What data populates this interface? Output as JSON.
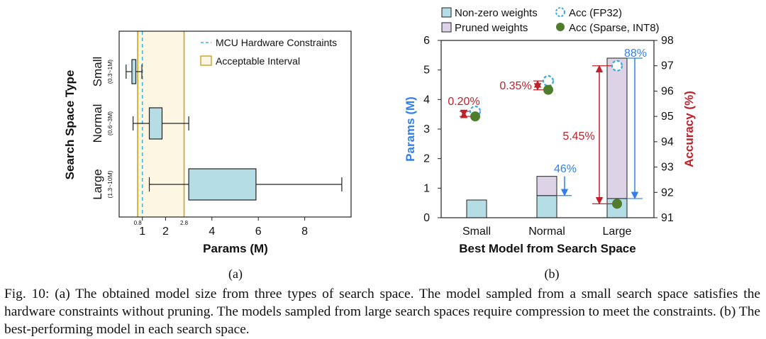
{
  "chart_data": [
    {
      "type": "boxplot",
      "orientation": "horizontal",
      "panel_label": "(a)",
      "xlabel": "Params (M)",
      "ylabel": "Search Space Type",
      "xlim": [
        0,
        10
      ],
      "xticks": [
        1,
        2,
        4,
        6,
        8
      ],
      "xticks_small": [
        0.8,
        2.8
      ],
      "categories": [
        {
          "name": "Small",
          "range": "(0.3~1M)",
          "whisker_low": 0.3,
          "q1": 0.55,
          "q3": 0.72,
          "whisker_high": 0.98
        },
        {
          "name": "Normal",
          "range": "(0.6~3M)",
          "whisker_low": 0.6,
          "q1": 1.3,
          "q3": 1.85,
          "whisker_high": 3.0
        },
        {
          "name": "Large",
          "range": "(1.3~10M)",
          "whisker_low": 1.3,
          "q1": 3.0,
          "q3": 5.9,
          "whisker_high": 9.6
        }
      ],
      "constraint": {
        "label": "MCU Hardware Constraints",
        "value": 1.0
      },
      "interval": {
        "label": "Acceptable Interval",
        "low": 0.8,
        "high": 2.8
      },
      "colors": {
        "box": "#b5dde6",
        "constraint": "#3ab5e6",
        "interval_fill": "#fdf6e3",
        "interval_line": "#c9a227"
      }
    },
    {
      "type": "bar",
      "panel_label": "(b)",
      "xlabel": "Best Model from Search Space",
      "ylabel": "Params (M)",
      "y2label": "Accuracy (%)",
      "categories": [
        "Small",
        "Normal",
        "Large"
      ],
      "ylim": [
        0,
        6
      ],
      "yticks": [
        0,
        1,
        2,
        3,
        4,
        5,
        6
      ],
      "y2lim": [
        91,
        98
      ],
      "y2ticks": [
        91,
        92,
        93,
        94,
        95,
        96,
        97,
        98
      ],
      "series": [
        {
          "name": "Non-zero weights",
          "values": [
            0.6,
            0.75,
            0.65
          ],
          "color": "#b5dde6"
        },
        {
          "name": "Pruned weights",
          "values": [
            0,
            0.65,
            4.75
          ],
          "color": "#ddd3e6"
        }
      ],
      "accuracy": [
        {
          "name": "Acc (FP32)",
          "values": [
            95.2,
            96.4,
            97.0
          ],
          "color": "#39a9e0"
        },
        {
          "name": "Acc (Sparse, INT8)",
          "values": [
            95.0,
            96.05,
            91.55
          ],
          "color": "#4f7d2b"
        }
      ],
      "annotations": {
        "acc_drops": [
          "0.20%",
          "0.35%",
          "5.45%"
        ],
        "pruning_ratios": [
          "46%",
          "88%"
        ]
      },
      "colors": {
        "left_axis": "#2f80ed",
        "right_axis": "#c0202a",
        "drop": "#c0202a",
        "ratio": "#2f80ed"
      }
    }
  ],
  "caption": "Fig. 10: (a) The obtained model size from three types of search space. The model sampled from a small search space satisfies the hardware constraints without pruning. The models sampled from large search spaces require compression to meet the constraints. (b) The best-performing model in each search space."
}
